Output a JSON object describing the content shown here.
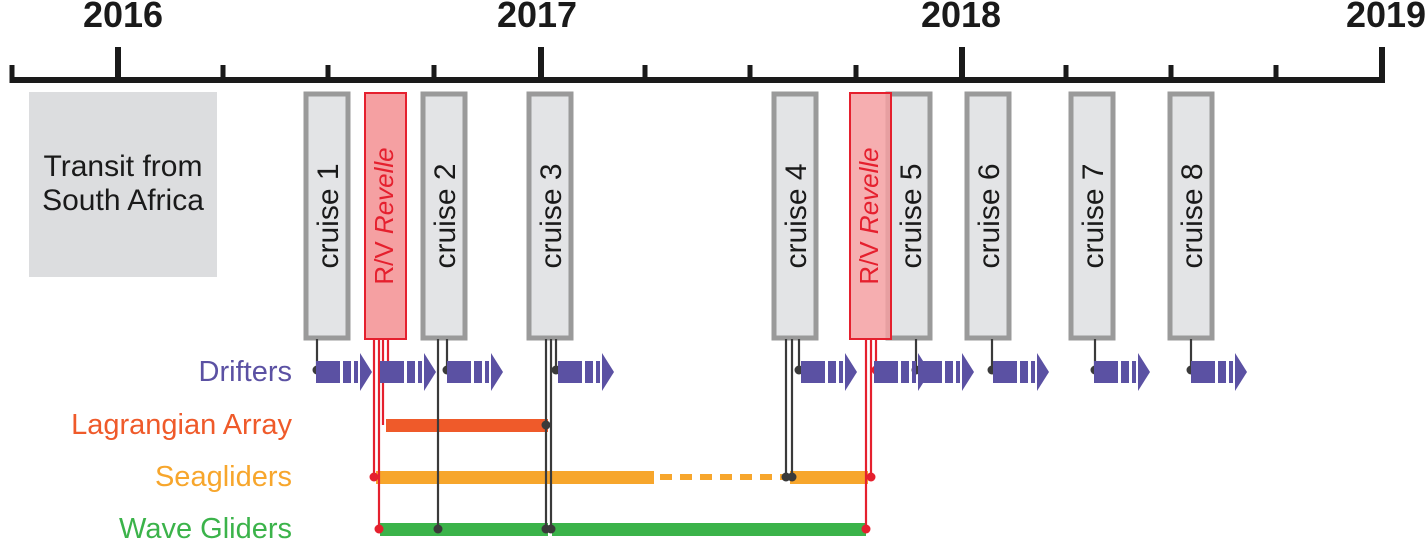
{
  "years": [
    "2016",
    "2017",
    "2018",
    "2019"
  ],
  "transit": {
    "line1": "Transit from",
    "line2": "South Africa"
  },
  "cruises": [
    {
      "label": "cruise 1"
    },
    {
      "label": "cruise 2"
    },
    {
      "label": "cruise 3"
    },
    {
      "label": "cruise 4"
    },
    {
      "label": "cruise 5"
    },
    {
      "label": "cruise 6"
    },
    {
      "label": "cruise 7"
    },
    {
      "label": "cruise 8"
    }
  ],
  "revelle": [
    {
      "prefix": "R/V ",
      "name": "Revelle"
    },
    {
      "prefix": "R/V ",
      "name": "Revelle"
    }
  ],
  "rows": {
    "drifters": "Drifters",
    "lagrangian": "Lagrangian Array",
    "seagliders": "Seagliders",
    "wavegliders": "Wave Gliders"
  },
  "colors": {
    "drifters": "#5b51a3",
    "lagrangian": "#ef5a2a",
    "seagliders": "#f7a62c",
    "wavegliders": "#3bb34a",
    "revelle": "#e5202e",
    "revelle_fill": "#f5a0a2",
    "cruise_fill": "#e3e4e6",
    "cruise_border": "#9a9a9a",
    "transit_fill": "#dcdddf",
    "connector": "#3a3a3a"
  }
}
